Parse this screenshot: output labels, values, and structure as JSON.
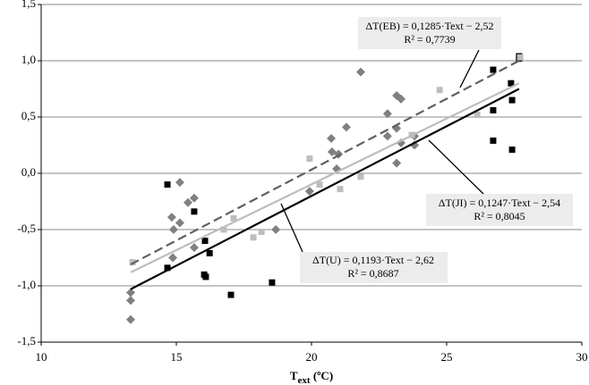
{
  "chart_data": {
    "type": "scatter",
    "x_label": "T",
    "x_label_sub": "ext",
    "x_label_unit": " (ºC)",
    "xlim": [
      10,
      30
    ],
    "xticks": [
      10,
      15,
      20,
      25,
      30
    ],
    "ylim": [
      -1.5,
      1.5
    ],
    "yticks": [
      {
        "value": -1.5,
        "label": "-1,5"
      },
      {
        "value": -1.0,
        "label": "-1,0"
      },
      {
        "value": -0.5,
        "label": "-0,5"
      },
      {
        "value": 0,
        "label": "0,0"
      },
      {
        "value": 0.5,
        "label": "0,5"
      },
      {
        "value": 1.0,
        "label": "1,0"
      },
      {
        "value": 1.5,
        "label": "1,5"
      }
    ],
    "grid": true,
    "series": [
      {
        "name": "EB",
        "color": "#808080",
        "marker": "diamond",
        "x": [
          13.31,
          13.31,
          13.31,
          14.83,
          14.9,
          15.13,
          14.87,
          15.13,
          15.43,
          15.66,
          15.66,
          18.68,
          19.93,
          20.73,
          20.76,
          21.0,
          20.93,
          21.29,
          21.82,
          22.81,
          22.81,
          23.15,
          23.31,
          23.15,
          23.31,
          23.15,
          23.81,
          23.81
        ],
        "values": [
          -1.3,
          -1.13,
          -1.06,
          -0.39,
          -0.5,
          -0.44,
          -0.75,
          -0.08,
          -0.26,
          -0.22,
          -0.66,
          -0.5,
          -0.16,
          0.31,
          0.19,
          0.17,
          0.04,
          0.41,
          0.9,
          0.53,
          0.33,
          0.69,
          0.66,
          0.4,
          0.27,
          0.09,
          0.25,
          0.33
        ]
      },
      {
        "name": "U",
        "color": "#000000",
        "marker": "square",
        "x": [
          14.67,
          14.67,
          15.66,
          16.06,
          16.03,
          16.09,
          16.23,
          17.02,
          18.54,
          26.72,
          26.72,
          26.72,
          27.38,
          27.42,
          27.42,
          27.68,
          27.68
        ],
        "values": [
          -0.1,
          -0.84,
          -0.34,
          -0.6,
          -0.9,
          -0.92,
          -0.71,
          -1.08,
          -0.97,
          0.92,
          0.56,
          0.29,
          0.8,
          0.65,
          0.21,
          1.04,
          1.02
        ]
      },
      {
        "name": "JI",
        "color": "#bdbdbd",
        "marker": "square",
        "x": [
          13.38,
          17.12,
          16.75,
          17.85,
          18.15,
          19.93,
          20.3,
          21.06,
          21.82,
          24.74,
          26.13,
          23.71,
          27.72
        ],
        "values": [
          -0.79,
          -0.4,
          -0.5,
          -0.57,
          -0.52,
          0.13,
          -0.1,
          -0.14,
          -0.03,
          0.74,
          0.52,
          0.34,
          1.03
        ]
      }
    ],
    "trend_lines": [
      {
        "color": "#606060",
        "dashed": true,
        "x": [
          13.31,
          27.68
        ],
        "values": [
          -0.81,
          1.0
        ]
      },
      {
        "color": "#bdbdbd",
        "dashed": false,
        "x": [
          13.31,
          27.68
        ],
        "values": [
          -0.88,
          0.8
        ]
      },
      {
        "color": "#000000",
        "dashed": false,
        "x": [
          13.31,
          27.68
        ],
        "values": [
          -1.03,
          0.75
        ]
      }
    ],
    "annotations": [
      {
        "equation": "ΔT(EB) = 0,1285·Text − 2,52",
        "r2": "R² = 0,7739"
      },
      {
        "equation": "ΔT(JI) = 0,1247·Text − 2,54",
        "r2": "R² = 0,8045"
      },
      {
        "equation": "ΔT(U) = 0,1193·Text − 2,62",
        "r2": "R² = 0,8687"
      }
    ]
  }
}
